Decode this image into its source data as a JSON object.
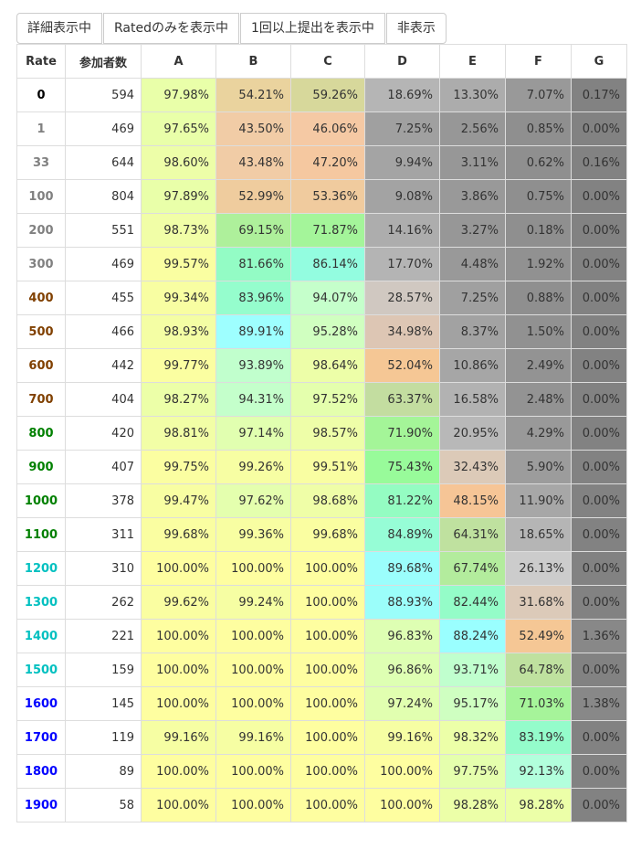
{
  "toolbar": {
    "buttons": [
      {
        "label": "詳細表示中"
      },
      {
        "label": "Ratedのみを表示中"
      },
      {
        "label": "1回以上提出を表示中"
      },
      {
        "label": "非表示"
      }
    ]
  },
  "table": {
    "headers": [
      "Rate",
      "参加者数",
      "A",
      "B",
      "C",
      "D",
      "E",
      "F",
      "G"
    ],
    "rows": [
      {
        "rate": "0",
        "rate_color": "#000000",
        "count": "594",
        "cells": [
          {
            "v": "97.98%",
            "bg": "#e9ffa9"
          },
          {
            "v": "54.21%",
            "bg": "#ead39e"
          },
          {
            "v": "59.26%",
            "bg": "#d7d89b"
          },
          {
            "v": "18.69%",
            "bg": "#b5b5b5"
          },
          {
            "v": "13.30%",
            "bg": "#acacac"
          },
          {
            "v": "7.07%",
            "bg": "#999999"
          },
          {
            "v": "0.17%",
            "bg": "#828282"
          }
        ]
      },
      {
        "rate": "1",
        "rate_color": "#808080",
        "count": "469",
        "cells": [
          {
            "v": "97.65%",
            "bg": "#e9ffa9"
          },
          {
            "v": "43.50%",
            "bg": "#f1cca6"
          },
          {
            "v": "46.06%",
            "bg": "#f5c9a4"
          },
          {
            "v": "7.25%",
            "bg": "#a0a0a0"
          },
          {
            "v": "2.56%",
            "bg": "#979797"
          },
          {
            "v": "0.85%",
            "bg": "#8f8f8f"
          },
          {
            "v": "0.00%",
            "bg": "#828282"
          }
        ]
      },
      {
        "rate": "33",
        "rate_color": "#808080",
        "count": "644",
        "cells": [
          {
            "v": "98.60%",
            "bg": "#edfea8"
          },
          {
            "v": "43.48%",
            "bg": "#f1cca6"
          },
          {
            "v": "47.20%",
            "bg": "#f5c8a0"
          },
          {
            "v": "9.94%",
            "bg": "#a4a4a4"
          },
          {
            "v": "3.11%",
            "bg": "#979797"
          },
          {
            "v": "0.62%",
            "bg": "#8f8f8f"
          },
          {
            "v": "0.16%",
            "bg": "#828282"
          }
        ]
      },
      {
        "rate": "100",
        "rate_color": "#808080",
        "count": "804",
        "cells": [
          {
            "v": "97.89%",
            "bg": "#e9ffa9"
          },
          {
            "v": "52.99%",
            "bg": "#efcc9e"
          },
          {
            "v": "53.36%",
            "bg": "#f0cb9e"
          },
          {
            "v": "9.08%",
            "bg": "#a3a3a3"
          },
          {
            "v": "3.86%",
            "bg": "#999999"
          },
          {
            "v": "0.75%",
            "bg": "#8f8f8f"
          },
          {
            "v": "0.00%",
            "bg": "#828282"
          }
        ]
      },
      {
        "rate": "200",
        "rate_color": "#808080",
        "count": "551",
        "cells": [
          {
            "v": "98.73%",
            "bg": "#f1fea7"
          },
          {
            "v": "69.15%",
            "bg": "#aef09b"
          },
          {
            "v": "71.87%",
            "bg": "#a4f59a"
          },
          {
            "v": "14.16%",
            "bg": "#adadad"
          },
          {
            "v": "3.27%",
            "bg": "#979797"
          },
          {
            "v": "0.18%",
            "bg": "#8f8f8f"
          },
          {
            "v": "0.00%",
            "bg": "#828282"
          }
        ]
      },
      {
        "rate": "300",
        "rate_color": "#808080",
        "count": "469",
        "cells": [
          {
            "v": "99.57%",
            "bg": "#fafea1"
          },
          {
            "v": "81.66%",
            "bg": "#93fcc5"
          },
          {
            "v": "86.14%",
            "bg": "#93fde0"
          },
          {
            "v": "17.70%",
            "bg": "#b4b4b4"
          },
          {
            "v": "4.48%",
            "bg": "#999999"
          },
          {
            "v": "1.92%",
            "bg": "#919191"
          },
          {
            "v": "0.00%",
            "bg": "#828282"
          }
        ]
      },
      {
        "rate": "400",
        "rate_color": "#804000",
        "count": "455",
        "cells": [
          {
            "v": "99.34%",
            "bg": "#f8fea2"
          },
          {
            "v": "83.96%",
            "bg": "#95fdcd"
          },
          {
            "v": "94.07%",
            "bg": "#c5ffcb"
          },
          {
            "v": "28.57%",
            "bg": "#d0c8c1"
          },
          {
            "v": "7.25%",
            "bg": "#a0a0a0"
          },
          {
            "v": "0.88%",
            "bg": "#8f8f8f"
          },
          {
            "v": "0.00%",
            "bg": "#828282"
          }
        ]
      },
      {
        "rate": "500",
        "rate_color": "#804000",
        "count": "466",
        "cells": [
          {
            "v": "98.93%",
            "bg": "#f4fea4"
          },
          {
            "v": "89.91%",
            "bg": "#9effff"
          },
          {
            "v": "95.28%",
            "bg": "#d0ffc0"
          },
          {
            "v": "34.98%",
            "bg": "#ddc6b4"
          },
          {
            "v": "8.37%",
            "bg": "#a2a2a2"
          },
          {
            "v": "1.50%",
            "bg": "#919191"
          },
          {
            "v": "0.00%",
            "bg": "#828282"
          }
        ]
      },
      {
        "rate": "600",
        "rate_color": "#804000",
        "count": "442",
        "cells": [
          {
            "v": "99.77%",
            "bg": "#fbfea1"
          },
          {
            "v": "93.89%",
            "bg": "#c1ffcd"
          },
          {
            "v": "98.64%",
            "bg": "#edfea8"
          },
          {
            "v": "52.04%",
            "bg": "#f5c795"
          },
          {
            "v": "10.86%",
            "bg": "#a6a6a6"
          },
          {
            "v": "2.49%",
            "bg": "#939393"
          },
          {
            "v": "0.00%",
            "bg": "#828282"
          }
        ]
      },
      {
        "rate": "700",
        "rate_color": "#804000",
        "count": "404",
        "cells": [
          {
            "v": "98.27%",
            "bg": "#ecffa8"
          },
          {
            "v": "94.31%",
            "bg": "#c4ffcb"
          },
          {
            "v": "97.52%",
            "bg": "#e4ffad"
          },
          {
            "v": "63.37%",
            "bg": "#c3dda0"
          },
          {
            "v": "16.58%",
            "bg": "#b2b2b2"
          },
          {
            "v": "2.48%",
            "bg": "#939393"
          },
          {
            "v": "0.00%",
            "bg": "#828282"
          }
        ]
      },
      {
        "rate": "800",
        "rate_color": "#008000",
        "count": "420",
        "cells": [
          {
            "v": "98.81%",
            "bg": "#f2fea6"
          },
          {
            "v": "97.14%",
            "bg": "#e1ffb0"
          },
          {
            "v": "98.57%",
            "bg": "#eefea8"
          },
          {
            "v": "71.90%",
            "bg": "#a4f598"
          },
          {
            "v": "20.95%",
            "bg": "#b8b8b8"
          },
          {
            "v": "4.29%",
            "bg": "#999999"
          },
          {
            "v": "0.00%",
            "bg": "#828282"
          }
        ]
      },
      {
        "rate": "900",
        "rate_color": "#008000",
        "count": "407",
        "cells": [
          {
            "v": "99.75%",
            "bg": "#fbfea1"
          },
          {
            "v": "99.26%",
            "bg": "#f7fea3"
          },
          {
            "v": "99.51%",
            "bg": "#f9fea2"
          },
          {
            "v": "75.43%",
            "bg": "#98fb9a"
          },
          {
            "v": "32.43%",
            "bg": "#dccab8"
          },
          {
            "v": "5.90%",
            "bg": "#9c9c9c"
          },
          {
            "v": "0.00%",
            "bg": "#828282"
          }
        ]
      },
      {
        "rate": "1000",
        "rate_color": "#008000",
        "count": "378",
        "cells": [
          {
            "v": "99.47%",
            "bg": "#f8fea2"
          },
          {
            "v": "97.62%",
            "bg": "#e4ffae"
          },
          {
            "v": "98.68%",
            "bg": "#effea7"
          },
          {
            "v": "81.22%",
            "bg": "#94fcc2"
          },
          {
            "v": "48.15%",
            "bg": "#f6c596"
          },
          {
            "v": "11.90%",
            "bg": "#a7a7a7"
          },
          {
            "v": "0.00%",
            "bg": "#828282"
          }
        ]
      },
      {
        "rate": "1100",
        "rate_color": "#008000",
        "count": "311",
        "cells": [
          {
            "v": "99.68%",
            "bg": "#fafea1"
          },
          {
            "v": "99.36%",
            "bg": "#f8fea2"
          },
          {
            "v": "99.68%",
            "bg": "#fafea1"
          },
          {
            "v": "84.89%",
            "bg": "#96fdd6"
          },
          {
            "v": "64.31%",
            "bg": "#bfe19f"
          },
          {
            "v": "18.65%",
            "bg": "#b5b5b5"
          },
          {
            "v": "0.00%",
            "bg": "#828282"
          }
        ]
      },
      {
        "rate": "1200",
        "rate_color": "#00c0c0",
        "count": "310",
        "cells": [
          {
            "v": "100.00%",
            "bg": "#fefea0"
          },
          {
            "v": "100.00%",
            "bg": "#fefea0"
          },
          {
            "v": "100.00%",
            "bg": "#fefea0"
          },
          {
            "v": "89.68%",
            "bg": "#9bfefc"
          },
          {
            "v": "67.74%",
            "bg": "#b3ec9d"
          },
          {
            "v": "26.13%",
            "bg": "#cccccc"
          },
          {
            "v": "0.00%",
            "bg": "#828282"
          }
        ]
      },
      {
        "rate": "1300",
        "rate_color": "#00c0c0",
        "count": "262",
        "cells": [
          {
            "v": "99.62%",
            "bg": "#fafea1"
          },
          {
            "v": "99.24%",
            "bg": "#f6fea3"
          },
          {
            "v": "100.00%",
            "bg": "#fefea0"
          },
          {
            "v": "88.93%",
            "bg": "#9bfefa"
          },
          {
            "v": "82.44%",
            "bg": "#94fcc8"
          },
          {
            "v": "31.68%",
            "bg": "#dccab9"
          },
          {
            "v": "0.00%",
            "bg": "#828282"
          }
        ]
      },
      {
        "rate": "1400",
        "rate_color": "#00c0c0",
        "count": "221",
        "cells": [
          {
            "v": "100.00%",
            "bg": "#fefea0"
          },
          {
            "v": "100.00%",
            "bg": "#fefea0"
          },
          {
            "v": "100.00%",
            "bg": "#fefea0"
          },
          {
            "v": "96.83%",
            "bg": "#deffb3"
          },
          {
            "v": "88.24%",
            "bg": "#9affff"
          },
          {
            "v": "52.49%",
            "bg": "#f5c795"
          },
          {
            "v": "1.36%",
            "bg": "#888888"
          }
        ]
      },
      {
        "rate": "1500",
        "rate_color": "#00c0c0",
        "count": "159",
        "cells": [
          {
            "v": "100.00%",
            "bg": "#fefea0"
          },
          {
            "v": "100.00%",
            "bg": "#fefea0"
          },
          {
            "v": "100.00%",
            "bg": "#fefea0"
          },
          {
            "v": "96.86%",
            "bg": "#deffb3"
          },
          {
            "v": "93.71%",
            "bg": "#c0ffce"
          },
          {
            "v": "64.78%",
            "bg": "#bfe19f"
          },
          {
            "v": "0.00%",
            "bg": "#828282"
          }
        ]
      },
      {
        "rate": "1600",
        "rate_color": "#0000ff",
        "count": "145",
        "cells": [
          {
            "v": "100.00%",
            "bg": "#fefea0"
          },
          {
            "v": "100.00%",
            "bg": "#fefea0"
          },
          {
            "v": "100.00%",
            "bg": "#fefea0"
          },
          {
            "v": "97.24%",
            "bg": "#e1ffb0"
          },
          {
            "v": "95.17%",
            "bg": "#cfffc1"
          },
          {
            "v": "71.03%",
            "bg": "#a6f49a"
          },
          {
            "v": "1.38%",
            "bg": "#888888"
          }
        ]
      },
      {
        "rate": "1700",
        "rate_color": "#0000ff",
        "count": "119",
        "cells": [
          {
            "v": "99.16%",
            "bg": "#f6fea3"
          },
          {
            "v": "99.16%",
            "bg": "#f6fea3"
          },
          {
            "v": "100.00%",
            "bg": "#fefea0"
          },
          {
            "v": "99.16%",
            "bg": "#f6fea3"
          },
          {
            "v": "98.32%",
            "bg": "#ecffa8"
          },
          {
            "v": "83.19%",
            "bg": "#94fccb"
          },
          {
            "v": "0.00%",
            "bg": "#828282"
          }
        ]
      },
      {
        "rate": "1800",
        "rate_color": "#0000ff",
        "count": "89",
        "cells": [
          {
            "v": "100.00%",
            "bg": "#fefea0"
          },
          {
            "v": "100.00%",
            "bg": "#fefea0"
          },
          {
            "v": "100.00%",
            "bg": "#fefea0"
          },
          {
            "v": "100.00%",
            "bg": "#fefea0"
          },
          {
            "v": "97.75%",
            "bg": "#e5ffad"
          },
          {
            "v": "92.13%",
            "bg": "#b2ffdc"
          },
          {
            "v": "0.00%",
            "bg": "#828282"
          }
        ]
      },
      {
        "rate": "1900",
        "rate_color": "#0000ff",
        "count": "58",
        "cells": [
          {
            "v": "100.00%",
            "bg": "#fefea0"
          },
          {
            "v": "100.00%",
            "bg": "#fefea0"
          },
          {
            "v": "100.00%",
            "bg": "#fefea0"
          },
          {
            "v": "100.00%",
            "bg": "#fefea0"
          },
          {
            "v": "98.28%",
            "bg": "#ecffa8"
          },
          {
            "v": "98.28%",
            "bg": "#ecffa8"
          },
          {
            "v": "0.00%",
            "bg": "#828282"
          }
        ]
      }
    ]
  }
}
